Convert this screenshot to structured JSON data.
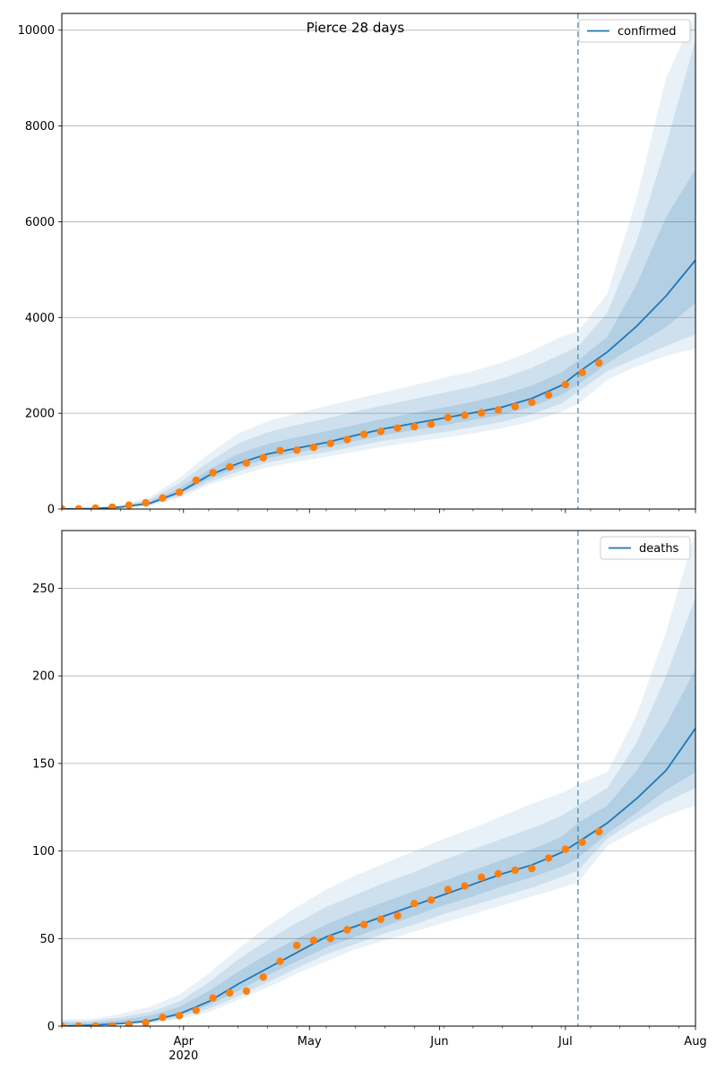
{
  "chart_data": [
    {
      "type": "line",
      "title": "Pierce 28 days",
      "xlabel": "",
      "ylabel": "",
      "ylim": [
        0,
        10350
      ],
      "yticks": [
        0,
        2000,
        4000,
        6000,
        8000,
        10000
      ],
      "xlim": [
        "2020-03-03",
        "2020-08-01"
      ],
      "xticks": [
        {
          "date": "2020-04-01",
          "label": "Apr",
          "sublabel": "2020"
        },
        {
          "date": "2020-05-01",
          "label": "May"
        },
        {
          "date": "2020-06-01",
          "label": "Jun"
        },
        {
          "date": "2020-07-01",
          "label": "Jul"
        },
        {
          "date": "2020-08-01",
          "label": "Aug"
        }
      ],
      "grid": "y",
      "legend": {
        "position": "top-right",
        "entries": [
          "confirmed"
        ]
      },
      "forecast_start": "2020-07-04",
      "colors": {
        "model": "#1f77b4",
        "observed": "#ff7f0e",
        "band": "#1f77b4"
      },
      "model": {
        "name": "confirmed",
        "x": [
          "2020-03-03",
          "2020-03-10",
          "2020-03-17",
          "2020-03-24",
          "2020-03-31",
          "2020-04-07",
          "2020-04-14",
          "2020-04-21",
          "2020-04-28",
          "2020-05-05",
          "2020-05-12",
          "2020-05-19",
          "2020-05-26",
          "2020-06-02",
          "2020-06-09",
          "2020-06-16",
          "2020-06-23",
          "2020-06-30",
          "2020-07-04",
          "2020-07-11",
          "2020-07-18",
          "2020-07-25",
          "2020-08-01"
        ],
        "median": [
          0,
          10,
          40,
          120,
          350,
          700,
          950,
          1150,
          1270,
          1390,
          1540,
          1680,
          1790,
          1900,
          2010,
          2130,
          2310,
          2580,
          2850,
          3280,
          3820,
          4450,
          5200
        ],
        "bands": [
          {
            "lower": [
              0,
              6,
              25,
              70,
              230,
              500,
              700,
              870,
              990,
              1090,
              1200,
              1310,
              1400,
              1490,
              1580,
              1690,
              1830,
              2030,
              2200,
              2700,
              2980,
              3200,
              3350
            ],
            "upper": [
              0,
              20,
              80,
              250,
              650,
              1150,
              1580,
              1830,
              2000,
              2150,
              2300,
              2440,
              2590,
              2740,
              2880,
              3060,
              3300,
              3600,
              3700,
              4500,
              6500,
              9000,
              10350
            ]
          },
          {
            "lower": [
              0,
              7,
              30,
              85,
              270,
              560,
              780,
              970,
              1090,
              1190,
              1310,
              1430,
              1520,
              1610,
              1710,
              1820,
              1980,
              2200,
              2450,
              2880,
              3150,
              3400,
              3650
            ],
            "upper": [
              0,
              16,
              65,
              200,
              540,
              980,
              1370,
              1600,
              1760,
              1890,
              2040,
              2170,
              2300,
              2430,
              2560,
              2730,
              2950,
              3230,
              3400,
              4100,
              5600,
              7600,
              9800
            ]
          },
          {
            "lower": [
              0,
              8,
              34,
              100,
              310,
              625,
              860,
              1060,
              1180,
              1290,
              1420,
              1550,
              1650,
              1750,
              1860,
              1970,
              2140,
              2380,
              2600,
              3040,
              3430,
              3800,
              4300
            ],
            "upper": [
              0,
              13,
              52,
              160,
              440,
              820,
              1150,
              1360,
              1500,
              1620,
              1760,
              1890,
              2010,
              2120,
              2240,
              2390,
              2580,
              2850,
              3100,
              3600,
              4700,
              6100,
              7100
            ]
          }
        ]
      },
      "observed": {
        "x": [
          "2020-03-03",
          "2020-03-07",
          "2020-03-11",
          "2020-03-15",
          "2020-03-19",
          "2020-03-23",
          "2020-03-27",
          "2020-03-31",
          "2020-04-04",
          "2020-04-08",
          "2020-04-12",
          "2020-04-16",
          "2020-04-20",
          "2020-04-24",
          "2020-04-28",
          "2020-05-02",
          "2020-05-06",
          "2020-05-10",
          "2020-05-14",
          "2020-05-18",
          "2020-05-22",
          "2020-05-26",
          "2020-05-30",
          "2020-06-03",
          "2020-06-07",
          "2020-06-11",
          "2020-06-15",
          "2020-06-19",
          "2020-06-23",
          "2020-06-27",
          "2020-07-01",
          "2020-07-05",
          "2020-07-09"
        ],
        "values": [
          0,
          5,
          20,
          40,
          80,
          130,
          230,
          350,
          600,
          760,
          880,
          960,
          1070,
          1220,
          1230,
          1290,
          1370,
          1450,
          1560,
          1620,
          1690,
          1720,
          1770,
          1910,
          1960,
          2010,
          2070,
          2140,
          2230,
          2380,
          2600,
          2850,
          3050
        ]
      }
    },
    {
      "type": "line",
      "title": "",
      "xlabel": "",
      "ylabel": "",
      "ylim": [
        0,
        283
      ],
      "yticks": [
        0,
        50,
        100,
        150,
        200,
        250
      ],
      "xlim": [
        "2020-03-03",
        "2020-08-01"
      ],
      "xticks": [
        {
          "date": "2020-04-01",
          "label": "Apr",
          "sublabel": "2020"
        },
        {
          "date": "2020-05-01",
          "label": "May"
        },
        {
          "date": "2020-06-01",
          "label": "Jun"
        },
        {
          "date": "2020-07-01",
          "label": "Jul"
        },
        {
          "date": "2020-08-01",
          "label": "Aug"
        }
      ],
      "grid": "y",
      "legend": {
        "position": "top-right",
        "entries": [
          "deaths"
        ]
      },
      "forecast_start": "2020-07-04",
      "colors": {
        "model": "#1f77b4",
        "observed": "#ff7f0e",
        "band": "#1f77b4"
      },
      "model": {
        "name": "deaths",
        "x": [
          "2020-03-03",
          "2020-03-10",
          "2020-03-17",
          "2020-03-24",
          "2020-03-31",
          "2020-04-07",
          "2020-04-14",
          "2020-04-21",
          "2020-04-28",
          "2020-05-05",
          "2020-05-12",
          "2020-05-19",
          "2020-05-26",
          "2020-06-02",
          "2020-06-09",
          "2020-06-16",
          "2020-06-23",
          "2020-06-30",
          "2020-07-04",
          "2020-07-11",
          "2020-07-18",
          "2020-07-25",
          "2020-08-01"
        ],
        "median": [
          0,
          0.5,
          1.5,
          3,
          7,
          14,
          24,
          33,
          42,
          51,
          57,
          63,
          69,
          75,
          81,
          87,
          92,
          99,
          105,
          116,
          130,
          146,
          170
        ],
        "bands": [
          {
            "lower": [
              0,
              0.2,
              0.8,
              1.5,
              4,
              8,
              15,
              22,
              30,
              37,
              44,
              49,
              54,
              59,
              64,
              69,
              74,
              79,
              82,
              103,
              112,
              120,
              126
            ],
            "upper": [
              4,
              4,
              7,
              11,
              18,
              30,
              44,
              57,
              68,
              78,
              86,
              93,
              100,
              107,
              113,
              120,
              127,
              133,
              138,
              145,
              178,
              225,
              283
            ]
          },
          {
            "lower": [
              0,
              0.3,
              1,
              2,
              5,
              10,
              17,
              25,
              33,
              41,
              47,
              53,
              58,
              64,
              69,
              74,
              79,
              85,
              89,
              107,
              118,
              128,
              136
            ],
            "upper": [
              3,
              3,
              5,
              8,
              14,
              25,
              38,
              49,
              59,
              68,
              75,
              82,
              88,
              95,
              101,
              107,
              113,
              120,
              126,
              136,
              162,
              200,
              245
            ]
          },
          {
            "lower": [
              0,
              0.4,
              1.2,
              2.5,
              6,
              12,
              20,
              29,
              37,
              45,
              51,
              57,
              63,
              69,
              74,
              80,
              85,
              91,
              96,
              110,
              122,
              135,
              145
            ],
            "upper": [
              2,
              2,
              3.5,
              6,
              11,
              20,
              31,
              41,
              50,
              58,
              65,
              71,
              77,
              83,
              89,
              95,
              101,
              108,
              116,
              126,
              146,
              172,
              204
            ]
          }
        ]
      },
      "observed": {
        "x": [
          "2020-03-03",
          "2020-03-07",
          "2020-03-11",
          "2020-03-15",
          "2020-03-19",
          "2020-03-23",
          "2020-03-27",
          "2020-03-31",
          "2020-04-04",
          "2020-04-08",
          "2020-04-12",
          "2020-04-16",
          "2020-04-20",
          "2020-04-24",
          "2020-04-28",
          "2020-05-02",
          "2020-05-06",
          "2020-05-10",
          "2020-05-14",
          "2020-05-18",
          "2020-05-22",
          "2020-05-26",
          "2020-05-30",
          "2020-06-03",
          "2020-06-07",
          "2020-06-11",
          "2020-06-15",
          "2020-06-19",
          "2020-06-23",
          "2020-06-27",
          "2020-07-01",
          "2020-07-05",
          "2020-07-09"
        ],
        "values": [
          0,
          0,
          0,
          0,
          1,
          2,
          5,
          6,
          9,
          16,
          19,
          20,
          28,
          37,
          46,
          49,
          50,
          55,
          58,
          61,
          63,
          70,
          72,
          78,
          80,
          85,
          87,
          89,
          90,
          96,
          101,
          105,
          111
        ]
      }
    }
  ]
}
